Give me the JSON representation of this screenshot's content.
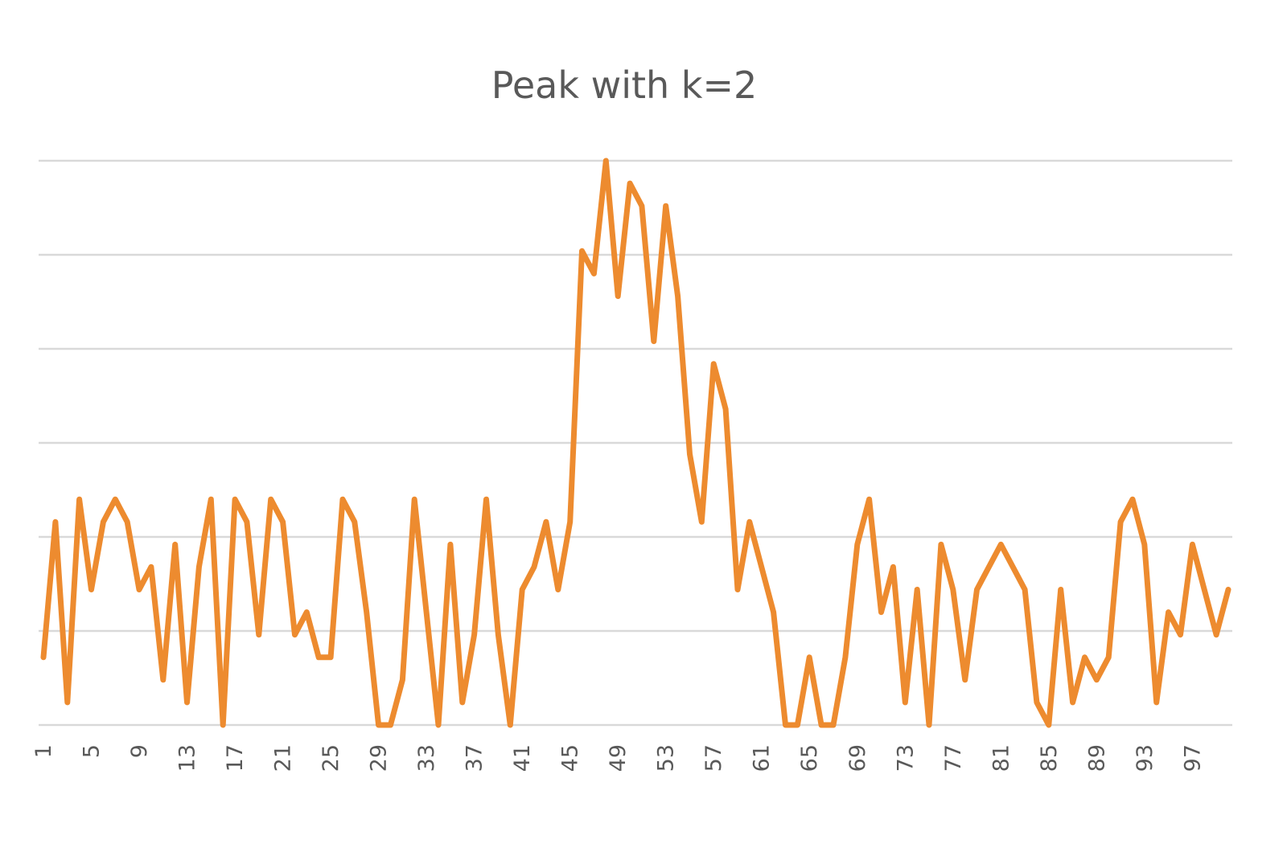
{
  "chart_data": {
    "type": "line",
    "title": "Peak with k=2",
    "xlabel": "",
    "ylabel": "",
    "x_tick_labels": [
      "1",
      "5",
      "9",
      "13",
      "17",
      "21",
      "25",
      "29",
      "33",
      "37",
      "41",
      "45",
      "49",
      "53",
      "57",
      "61",
      "65",
      "69",
      "73",
      "77",
      "81",
      "85",
      "89",
      "93",
      "97"
    ],
    "ylim": [
      0,
      5
    ],
    "grid": true,
    "legend": "none",
    "series": [
      {
        "color": "#ED8B2F",
        "x": [
          1,
          2,
          3,
          4,
          5,
          6,
          7,
          8,
          9,
          10,
          11,
          12,
          13,
          14,
          15,
          16,
          17,
          18,
          19,
          20,
          21,
          22,
          23,
          24,
          25,
          26,
          27,
          28,
          29,
          30,
          31,
          32,
          33,
          34,
          35,
          36,
          37,
          38,
          39,
          40,
          41,
          42,
          43,
          44,
          45,
          46,
          47,
          48,
          49,
          50,
          51,
          52,
          53,
          54,
          55,
          56,
          57,
          58,
          59,
          60,
          61,
          62,
          63,
          64,
          65,
          66,
          67,
          68,
          69,
          70,
          71,
          72,
          73,
          74,
          75,
          76,
          77,
          78,
          79,
          80,
          81,
          82,
          83,
          84,
          85,
          86,
          87,
          88,
          89,
          90,
          91,
          92,
          93,
          94,
          95,
          96,
          97,
          98,
          99,
          100
        ],
        "values": [
          0.6,
          1.8,
          0.2,
          2.0,
          1.2,
          1.8,
          2.0,
          1.8,
          1.2,
          1.4,
          0.4,
          1.6,
          0.2,
          1.4,
          2.0,
          0.0,
          2.0,
          1.8,
          0.8,
          2.0,
          1.8,
          0.8,
          1.0,
          0.6,
          0.6,
          2.0,
          1.8,
          1.0,
          0.0,
          0.0,
          0.4,
          2.0,
          1.0,
          0.0,
          1.6,
          0.2,
          0.8,
          2.0,
          0.8,
          0.0,
          1.2,
          1.4,
          1.8,
          1.2,
          1.8,
          4.2,
          4.0,
          5.0,
          3.8,
          4.8,
          4.6,
          3.4,
          4.6,
          3.8,
          2.4,
          1.8,
          3.2,
          2.8,
          1.2,
          1.8,
          1.4,
          1.0,
          0.0,
          0.0,
          0.6,
          0.0,
          0.0,
          0.6,
          1.6,
          2.0,
          1.0,
          1.4,
          0.2,
          1.2,
          0.0,
          1.6,
          1.2,
          0.4,
          1.2,
          1.4,
          1.6,
          1.4,
          1.2,
          0.2,
          0.0,
          1.2,
          0.2,
          0.6,
          0.4,
          0.6,
          1.8,
          2.0,
          1.6,
          0.2,
          1.0,
          0.8,
          1.6,
          1.2,
          0.8,
          1.2
        ]
      }
    ]
  }
}
